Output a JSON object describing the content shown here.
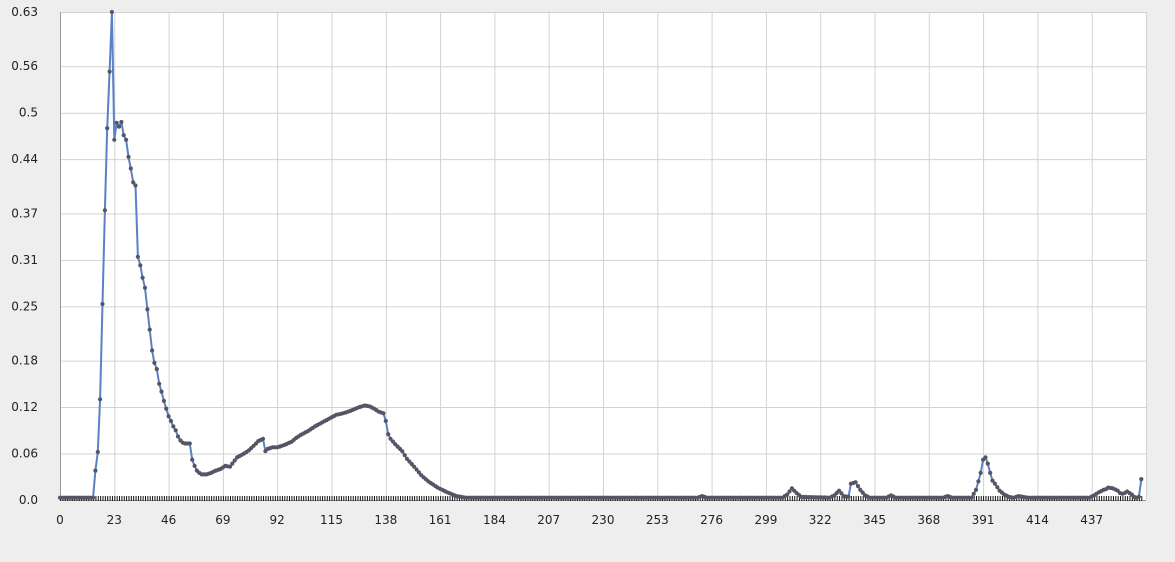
{
  "chart_data": {
    "type": "line",
    "title": "",
    "xlabel": "",
    "ylabel": "",
    "xlim": [
      0,
      460
    ],
    "ylim": [
      0,
      0.63
    ],
    "x_ticks": [
      0,
      23,
      46,
      69,
      92,
      115,
      138,
      161,
      184,
      207,
      230,
      253,
      276,
      299,
      322,
      345,
      368,
      391,
      414,
      437
    ],
    "x_tick_labels": [
      "0",
      "23",
      "46",
      "69",
      "92",
      "115",
      "138",
      "161",
      "184",
      "207",
      "230",
      "253",
      "276",
      "299",
      "322",
      "345",
      "368",
      "391",
      "414",
      "437"
    ],
    "y_ticks": [
      0,
      0.06,
      0.12,
      0.18,
      0.25,
      0.31,
      0.37,
      0.44,
      0.5,
      0.56,
      0.63
    ],
    "y_tick_labels": [
      "0.0",
      "0.06",
      "0.12",
      "0.18",
      "0.25",
      "0.31",
      "0.37",
      "0.44",
      "0.5",
      "0.56",
      "0.63"
    ],
    "grid": true,
    "colors": {
      "line": "#5b80c4",
      "marker": "#555566",
      "grid": "#d2d2d2",
      "plot_bg": "#ffffff",
      "frame": "#bbbbbb"
    },
    "series": [
      {
        "keypoints": [
          [
            0,
            0.003
          ],
          [
            14,
            0.003
          ],
          [
            15,
            0.038
          ],
          [
            16,
            0.062
          ],
          [
            17,
            0.13
          ],
          [
            18,
            0.253
          ],
          [
            19,
            0.374
          ],
          [
            20,
            0.48
          ],
          [
            21,
            0.553
          ],
          [
            22,
            0.63
          ],
          [
            23,
            0.465
          ],
          [
            24,
            0.487
          ],
          [
            25,
            0.482
          ],
          [
            26,
            0.488
          ],
          [
            27,
            0.471
          ],
          [
            28,
            0.465
          ],
          [
            29,
            0.443
          ],
          [
            30,
            0.428
          ],
          [
            31,
            0.41
          ],
          [
            32,
            0.406
          ],
          [
            33,
            0.314
          ],
          [
            34,
            0.303
          ],
          [
            35,
            0.287
          ],
          [
            36,
            0.274
          ],
          [
            37,
            0.246
          ],
          [
            38,
            0.22
          ],
          [
            39,
            0.193
          ],
          [
            40,
            0.177
          ],
          [
            41,
            0.169
          ],
          [
            42,
            0.15
          ],
          [
            43,
            0.14
          ],
          [
            44,
            0.128
          ],
          [
            45,
            0.118
          ],
          [
            46,
            0.108
          ],
          [
            47,
            0.102
          ],
          [
            48,
            0.095
          ],
          [
            49,
            0.09
          ],
          [
            50,
            0.082
          ],
          [
            51,
            0.077
          ],
          [
            52,
            0.074
          ],
          [
            53,
            0.073
          ],
          [
            55,
            0.073
          ],
          [
            56,
            0.052
          ],
          [
            57,
            0.044
          ],
          [
            58,
            0.038
          ],
          [
            59,
            0.035
          ],
          [
            60,
            0.033
          ],
          [
            61,
            0.033
          ],
          [
            62,
            0.033
          ],
          [
            64,
            0.035
          ],
          [
            66,
            0.038
          ],
          [
            68,
            0.04
          ],
          [
            70,
            0.044
          ],
          [
            72,
            0.043
          ],
          [
            73,
            0.047
          ],
          [
            75,
            0.055
          ],
          [
            78,
            0.06
          ],
          [
            80,
            0.064
          ],
          [
            82,
            0.07
          ],
          [
            84,
            0.076
          ],
          [
            86,
            0.079
          ],
          [
            87,
            0.063
          ],
          [
            88,
            0.066
          ],
          [
            90,
            0.068
          ],
          [
            92,
            0.068
          ],
          [
            95,
            0.071
          ],
          [
            98,
            0.075
          ],
          [
            100,
            0.08
          ],
          [
            102,
            0.084
          ],
          [
            105,
            0.089
          ],
          [
            108,
            0.095
          ],
          [
            111,
            0.1
          ],
          [
            114,
            0.105
          ],
          [
            117,
            0.11
          ],
          [
            120,
            0.112
          ],
          [
            123,
            0.115
          ],
          [
            126,
            0.119
          ],
          [
            129,
            0.122
          ],
          [
            131,
            0.121
          ],
          [
            133,
            0.118
          ],
          [
            135,
            0.114
          ],
          [
            137,
            0.112
          ],
          [
            138,
            0.102
          ],
          [
            139,
            0.085
          ],
          [
            140,
            0.079
          ],
          [
            142,
            0.072
          ],
          [
            145,
            0.063
          ],
          [
            147,
            0.053
          ],
          [
            150,
            0.043
          ],
          [
            153,
            0.032
          ],
          [
            156,
            0.024
          ],
          [
            160,
            0.016
          ],
          [
            164,
            0.01
          ],
          [
            168,
            0.005
          ],
          [
            172,
            0.003
          ],
          [
            180,
            0.003
          ],
          [
            270,
            0.003
          ],
          [
            272,
            0.005
          ],
          [
            274,
            0.003
          ],
          [
            306,
            0.003
          ],
          [
            308,
            0.007
          ],
          [
            310,
            0.015
          ],
          [
            312,
            0.009
          ],
          [
            314,
            0.004
          ],
          [
            326,
            0.003
          ],
          [
            328,
            0.006
          ],
          [
            330,
            0.012
          ],
          [
            332,
            0.005
          ],
          [
            334,
            0.004
          ],
          [
            335,
            0.021
          ],
          [
            337,
            0.023
          ],
          [
            339,
            0.013
          ],
          [
            341,
            0.006
          ],
          [
            343,
            0.003
          ],
          [
            350,
            0.003
          ],
          [
            352,
            0.006
          ],
          [
            354,
            0.003
          ],
          [
            374,
            0.003
          ],
          [
            376,
            0.005
          ],
          [
            378,
            0.003
          ],
          [
            386,
            0.003
          ],
          [
            388,
            0.013
          ],
          [
            390,
            0.035
          ],
          [
            391,
            0.052
          ],
          [
            392,
            0.055
          ],
          [
            393,
            0.047
          ],
          [
            394,
            0.035
          ],
          [
            395,
            0.025
          ],
          [
            396,
            0.021
          ],
          [
            398,
            0.012
          ],
          [
            400,
            0.007
          ],
          [
            402,
            0.004
          ],
          [
            404,
            0.003
          ],
          [
            406,
            0.005
          ],
          [
            408,
            0.004
          ],
          [
            410,
            0.003
          ],
          [
            436,
            0.003
          ],
          [
            438,
            0.006
          ],
          [
            440,
            0.01
          ],
          [
            442,
            0.013
          ],
          [
            443,
            0.014
          ],
          [
            444,
            0.016
          ],
          [
            446,
            0.015
          ],
          [
            448,
            0.012
          ],
          [
            449,
            0.009
          ],
          [
            450,
            0.008
          ],
          [
            451,
            0.009
          ],
          [
            452,
            0.011
          ],
          [
            453,
            0.009
          ],
          [
            454,
            0.007
          ],
          [
            455,
            0.004
          ],
          [
            456,
            0.003
          ],
          [
            457,
            0.004
          ],
          [
            458,
            0.027
          ]
        ]
      }
    ]
  }
}
